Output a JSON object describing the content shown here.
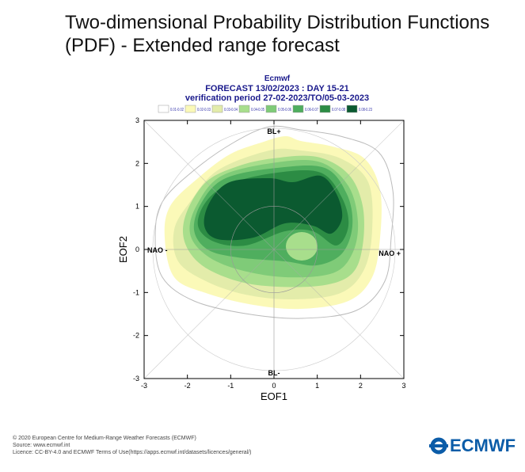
{
  "page_title": "Two-dimensional Probability Distribution Functions (PDF) - Extended range forecast",
  "footer": {
    "copyright": "© 2020 European Centre for Medium-Range Weather Forecasts (ECMWF)",
    "source": "Source: www.ecmwf.int",
    "licence": "Licence: CC-BY-4.0 and ECMWF Terms of Use(https://apps.ecmwf.int/datasets/licences/general/)",
    "logo_text": "ECMWF"
  },
  "chart_data": {
    "type": "contour",
    "header": [
      "Ecmwf",
      "FORECAST 13/02/2023 : DAY 15-21",
      "verification period 27-02-2023/TO/05-03-2023"
    ],
    "xlabel": "EOF1",
    "ylabel": "EOF2",
    "xlim": [
      -3,
      3
    ],
    "ylim": [
      -3,
      3
    ],
    "xticks": [
      "-3",
      "-2",
      "-1",
      "0",
      "1",
      "2",
      "3"
    ],
    "yticks": [
      "3",
      "2",
      "1",
      "0",
      "-1",
      "-2",
      "-3"
    ],
    "annotations": {
      "top": "BL+",
      "bottom": "BL-",
      "left": "NAO -",
      "right": "NAO +"
    },
    "legend": [
      {
        "label": "0.01-0.02",
        "color": "#ffffff"
      },
      {
        "label": "0.02-0.03",
        "color": "#fbf9b8"
      },
      {
        "label": "0.03-0.04",
        "color": "#e3ecaa"
      },
      {
        "label": "0.04-0.05",
        "color": "#a8de8c"
      },
      {
        "label": "0.05-0.06",
        "color": "#7fcb78"
      },
      {
        "label": "0.06-0.07",
        "color": "#4fae5e"
      },
      {
        "label": "0.07-0.08",
        "color": "#2c8c44"
      },
      {
        "label": "0.08-0.23",
        "color": "#0b5a30"
      }
    ],
    "maximum_region": {
      "EOF1": [
        -1.6,
        1.6
      ],
      "EOF2": [
        0.2,
        1.7
      ]
    }
  }
}
